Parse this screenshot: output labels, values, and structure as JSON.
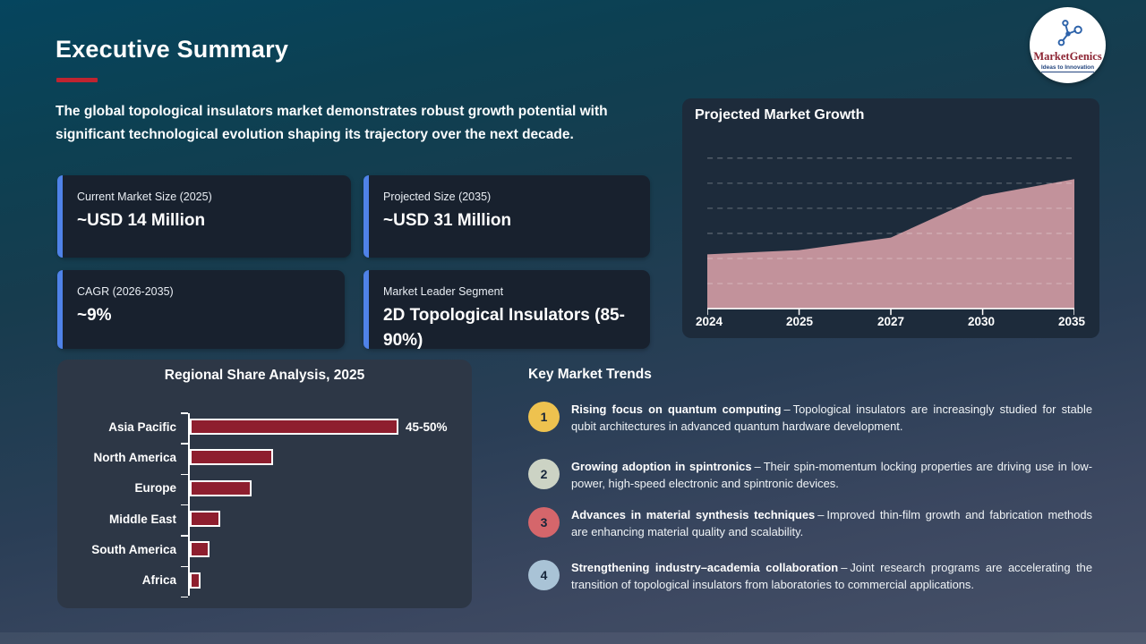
{
  "slide": {
    "title": "Executive Summary",
    "intro": "The global topological insulators market demonstrates robust growth potential with significant technological evolution shaping its trajectory over the next decade."
  },
  "logo": {
    "brand": "MarketGenics",
    "tagline": "Ideas to Innovation",
    "brand_color": "#8c2433",
    "tagline_color": "#23457e",
    "icon_color": "#2e63aa"
  },
  "stats": {
    "accent_color": "#4f82e8",
    "cards": [
      {
        "label": "Current Market Size (2025)",
        "value": "~USD 14 Million"
      },
      {
        "label": "Projected Size (2035)",
        "value": "~USD 31 Million"
      },
      {
        "label": "CAGR (2026-2035)",
        "value": "~9%"
      },
      {
        "label": "Market Leader Segment",
        "value": "2D Topological Insulators (85-90%)"
      }
    ]
  },
  "growth_chart": {
    "title": "Projected Market Growth"
  },
  "regional_chart": {
    "title": "Regional Share Analysis, 2025"
  },
  "trends": {
    "heading": "Key Market Trends",
    "separator": "–",
    "items": [
      {
        "number": "1",
        "badge_color": "#eec24f",
        "title": "Rising focus on quantum computing",
        "desc": "Topological insulators are increasingly studied for stable qubit architectures in advanced quantum hardware development."
      },
      {
        "number": "2",
        "badge_color": "#ccd3c4",
        "title": "Growing adoption in spintronics",
        "desc": "Their spin-momentum locking properties are driving use in low-power, high-speed electronic and spintronic devices."
      },
      {
        "number": "3",
        "badge_color": "#d5666b",
        "title": "Advances in material synthesis techniques",
        "desc": "Improved thin-film growth and fabrication methods are enhancing material quality and scalability."
      },
      {
        "number": "4",
        "badge_color": "#a9c3d6",
        "title": "Strengthening industry–academia collaboration",
        "desc": "Joint research programs are accelerating the transition of topological insulators from laboratories to commercial applications."
      }
    ]
  },
  "chart_data": [
    {
      "type": "area",
      "title": "Projected Market Growth",
      "x": [
        "2024",
        "2025",
        "2027",
        "2030",
        "2035"
      ],
      "values": [
        13,
        14,
        17,
        27,
        31
      ],
      "unit": "USD Million",
      "ylim": [
        0,
        39
      ],
      "gridlines": "horizontal-dashed",
      "gridline_step": 6,
      "fill_color": "#c2929b",
      "axis_color": "#ffffff"
    },
    {
      "type": "bar",
      "orientation": "horizontal",
      "title": "Regional Share Analysis, 2025",
      "categories": [
        "Asia Pacific",
        "North America",
        "Europe",
        "Middle East",
        "South America",
        "Africa"
      ],
      "values": [
        47.5,
        19,
        14,
        7,
        4.5,
        2.5
      ],
      "unit": "percent share",
      "xlim": [
        0,
        50
      ],
      "bar_color": "#8e1e2e",
      "bar_border_color": "#ffffff",
      "annotations": [
        {
          "category": "Asia Pacific",
          "label": "45-50%"
        }
      ]
    }
  ]
}
